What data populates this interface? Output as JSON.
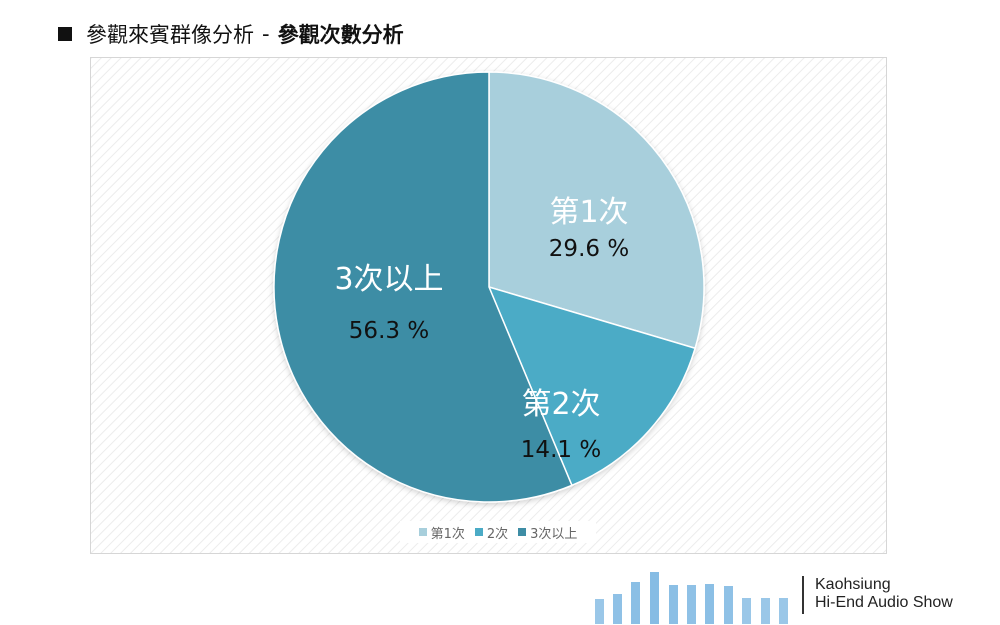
{
  "header": {
    "title_main": "參觀來賓群像分析",
    "separator": "-",
    "title_sub": "參觀次數分析"
  },
  "chart_data": {
    "type": "pie",
    "title": "參觀次數分析",
    "slices": [
      {
        "label": "第1次",
        "value": 29.6,
        "value_text": "29.6 %",
        "legend": "第1次",
        "color": "#a8cfdc"
      },
      {
        "label": "第2次",
        "value": 14.1,
        "value_text": "14.1 %",
        "legend": "2次",
        "color": "#4babc6"
      },
      {
        "label": "3次以上",
        "value": 56.3,
        "value_text": "56.3 %",
        "legend": "3次以上",
        "color": "#3e8da5"
      }
    ],
    "start_angle": "12 o'clock",
    "direction": "clockwise",
    "legend_position": "bottom"
  },
  "logo": {
    "line1": "Kaohsiung",
    "line2": "Hi-End Audio Show",
    "bar_color": "#9ac7e8"
  }
}
